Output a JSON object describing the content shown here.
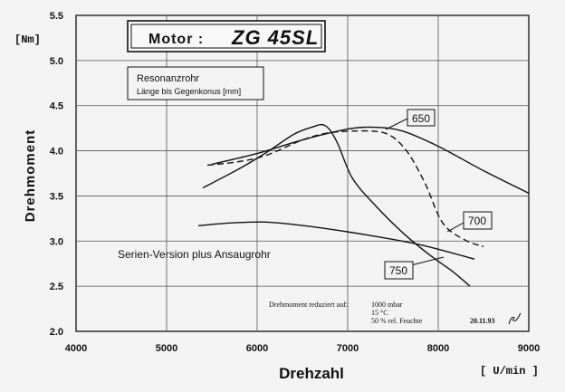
{
  "chart_data": {
    "type": "line",
    "title_prefix": "Motor :",
    "title_model": "ZG 45SL",
    "xlabel": "Drehzahl",
    "xunit": "[ U/min ]",
    "ylabel": "Drehmoment",
    "yunit": "[Nm]",
    "xlim": [
      4000,
      9000
    ],
    "ylim": [
      2.0,
      5.5
    ],
    "xticks": [
      "4000",
      "5000",
      "6000",
      "7000",
      "8000",
      "9000"
    ],
    "yticks": [
      "2.0",
      "2.5",
      "3.0",
      "3.5",
      "4.0",
      "4.5",
      "5.0",
      "5.5"
    ],
    "grid": true,
    "legend_box": {
      "title": "Resonanzrohr",
      "subtitle": "Länge bis Gegenkonus [mm]"
    },
    "series": [
      {
        "name": "650",
        "style": "solid",
        "points": [
          [
            5500,
            3.85
          ],
          [
            6000,
            3.97
          ],
          [
            6500,
            4.12
          ],
          [
            7000,
            4.24
          ],
          [
            7300,
            4.26
          ],
          [
            7600,
            4.22
          ],
          [
            8000,
            4.05
          ],
          [
            8500,
            3.78
          ],
          [
            9000,
            3.53
          ]
        ]
      },
      {
        "name": "700",
        "style": "dashed",
        "points": [
          [
            5450,
            3.84
          ],
          [
            5800,
            3.88
          ],
          [
            6100,
            3.95
          ],
          [
            6500,
            4.12
          ],
          [
            6800,
            4.2
          ],
          [
            7200,
            4.22
          ],
          [
            7450,
            4.18
          ],
          [
            7650,
            4.0
          ],
          [
            7850,
            3.65
          ],
          [
            8050,
            3.2
          ],
          [
            8300,
            3.01
          ],
          [
            8500,
            2.94
          ]
        ]
      },
      {
        "name": "750",
        "style": "solid",
        "points": [
          [
            5400,
            3.59
          ],
          [
            5800,
            3.8
          ],
          [
            6100,
            3.98
          ],
          [
            6400,
            4.18
          ],
          [
            6600,
            4.26
          ],
          [
            6750,
            4.28
          ],
          [
            6880,
            4.1
          ],
          [
            7050,
            3.7
          ],
          [
            7300,
            3.4
          ],
          [
            7600,
            3.1
          ],
          [
            7900,
            2.85
          ],
          [
            8150,
            2.67
          ],
          [
            8350,
            2.5
          ]
        ]
      },
      {
        "name": "Serien-Version plus Ansaugrohr",
        "style": "solid",
        "points": [
          [
            5350,
            3.17
          ],
          [
            5700,
            3.2
          ],
          [
            6100,
            3.21
          ],
          [
            6600,
            3.16
          ],
          [
            7200,
            3.07
          ],
          [
            7800,
            2.96
          ],
          [
            8400,
            2.8
          ]
        ]
      }
    ],
    "series_labels": {
      "s650": "650",
      "s700": "700",
      "s750": "750",
      "serien": "Serien-Version plus Ansaugrohr"
    },
    "note": {
      "title": "Drehmoment reduziert auf:",
      "line1": "1000 mbar",
      "line2": "15 °C",
      "line3": "50 % rel. Feuchte",
      "date": "20.11.93"
    }
  }
}
